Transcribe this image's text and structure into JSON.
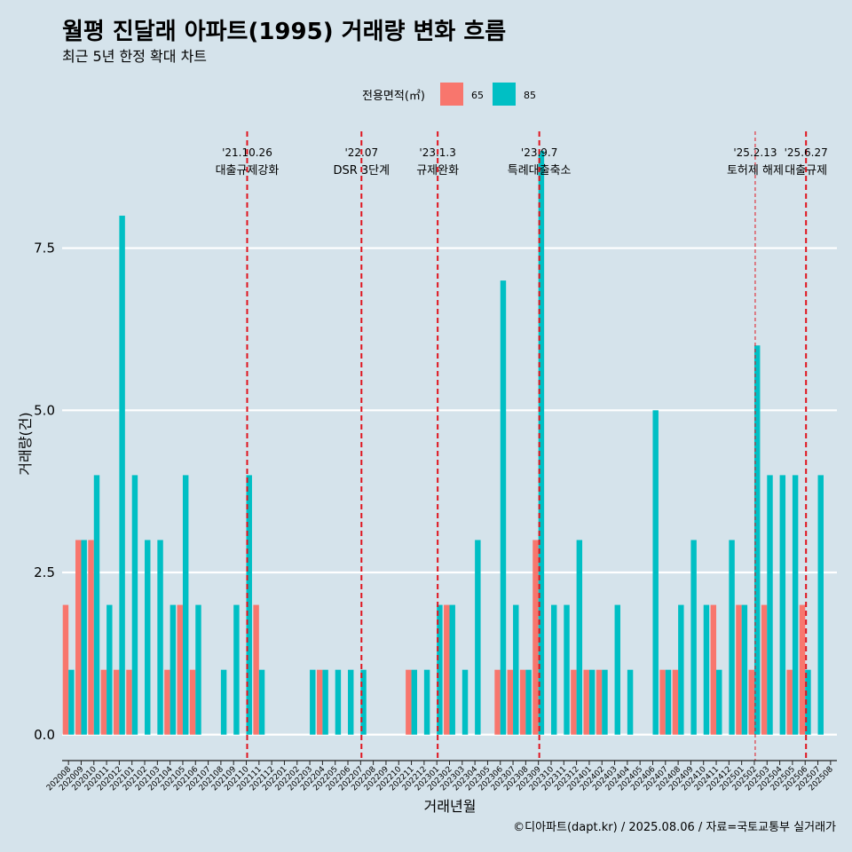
{
  "title": "월평 진달래 아파트(1995) 거래량 변화 흐름",
  "subtitle": "최근 5년 한정 확대 차트",
  "caption": "©디아파트(dapt.kr) / 2025.08.06 / 자료=국토교통부 실거래가",
  "colors": {
    "background": "#d5e3eb",
    "s65": "#f8766d",
    "s85": "#00bfc4",
    "event_line": "#e0141e",
    "grid": "#ffffff"
  },
  "chart_data": {
    "type": "bar",
    "xlabel": "거래년월",
    "ylabel": "거래량(건)",
    "ylim": [
      -0.4,
      9.3
    ],
    "yticks": [
      0,
      2.5,
      5,
      7.5
    ],
    "ytick_labels": [
      "0.0",
      "2.5",
      "5.0",
      "7.5"
    ],
    "legend": {
      "title": "전용면적(㎡)",
      "position": "top"
    },
    "grid": true,
    "categories": [
      "202008",
      "202009",
      "202010",
      "202011",
      "202012",
      "202101",
      "202102",
      "202103",
      "202104",
      "202105",
      "202106",
      "202107",
      "202108",
      "202109",
      "202110",
      "202111",
      "202112",
      "202201",
      "202202",
      "202203",
      "202204",
      "202205",
      "202206",
      "202207",
      "202208",
      "202209",
      "202210",
      "202211",
      "202212",
      "202301",
      "202302",
      "202303",
      "202304",
      "202305",
      "202306",
      "202307",
      "202308",
      "202309",
      "202310",
      "202311",
      "202312",
      "202401",
      "202402",
      "202403",
      "202404",
      "202405",
      "202406",
      "202407",
      "202408",
      "202409",
      "202410",
      "202411",
      "202412",
      "202501",
      "202502",
      "202503",
      "202504",
      "202505",
      "202506",
      "202507",
      "202508"
    ],
    "series": [
      {
        "name": "65",
        "values": [
          2,
          3,
          3,
          1,
          1,
          1,
          0,
          0,
          1,
          2,
          1,
          0,
          0,
          0,
          0,
          2,
          0,
          0,
          0,
          0,
          1,
          0,
          0,
          0,
          0,
          0,
          0,
          1,
          0,
          0,
          2,
          0,
          0,
          0,
          1,
          1,
          1,
          3,
          0,
          0,
          1,
          1,
          1,
          0,
          0,
          0,
          0,
          1,
          1,
          0,
          0,
          2,
          0,
          2,
          1,
          2,
          0,
          1,
          2,
          0,
          0
        ]
      },
      {
        "name": "85",
        "values": [
          1,
          3,
          4,
          2,
          8,
          4,
          3,
          3,
          2,
          4,
          2,
          0,
          1,
          2,
          4,
          1,
          0,
          0,
          0,
          1,
          1,
          1,
          1,
          1,
          0,
          0,
          0,
          1,
          1,
          2,
          2,
          1,
          3,
          0,
          7,
          2,
          1,
          9,
          2,
          2,
          3,
          1,
          1,
          2,
          1,
          0,
          5,
          1,
          2,
          3,
          2,
          1,
          3,
          2,
          6,
          4,
          4,
          4,
          1,
          4,
          0
        ]
      }
    ],
    "events": [
      {
        "date": "'21.10.26",
        "label": "대출규제강화",
        "at": "202110",
        "style": "bold"
      },
      {
        "date": "'22.07",
        "label": "DSR 3단계",
        "at": "202207",
        "style": "bold"
      },
      {
        "date": "'23.1.3",
        "label": "규제완화",
        "at": "202301",
        "style": "bold"
      },
      {
        "date": "'23.9.7",
        "label": "특례대출축소",
        "at": "202309",
        "style": "bold"
      },
      {
        "date": "'25.2.13",
        "label": "토허제 해제",
        "at": "202502",
        "style": "thin"
      },
      {
        "date": "'25.6.27",
        "label": "대출규제",
        "at": "202506",
        "style": "bold"
      }
    ]
  }
}
